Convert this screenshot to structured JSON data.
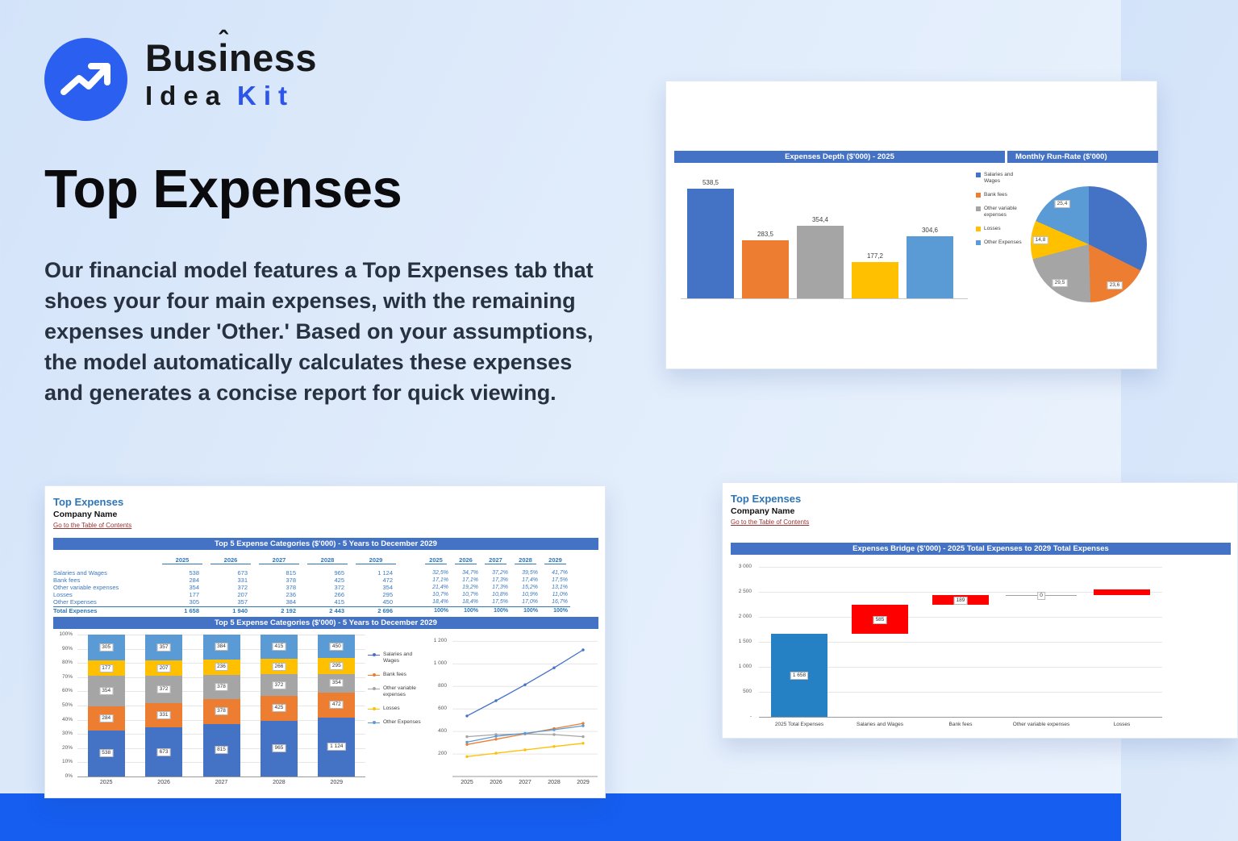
{
  "colors": {
    "accent_blue": "#2a5ff0",
    "footer_strip": "#155ef0",
    "excel_header": "#4472c4",
    "sheet_title_blue": "#2e75b6",
    "toc_link_red": "#963634",
    "bridge_blue": "#2680c4",
    "bridge_red": "#fe0000",
    "series_palette": [
      "#4472c4",
      "#ed7d31",
      "#a5a5a5",
      "#ffc000",
      "#5b9bd5"
    ]
  },
  "logo": {
    "word1_a": "Bus",
    "word1_i": "i",
    "word1_b": "ness",
    "caret": "ˆ",
    "word2": "Idea",
    "word3": "Kit"
  },
  "hero": {
    "title": "Top Expenses",
    "paragraph": "Our financial model features a Top Expenses tab that shoes your four main expenses, with the remaining expenses under 'Other.' Based on your assumptions, the model automatically calculates these expenses and generates a concise report for quick viewing."
  },
  "sheet_common": {
    "sheet_title": "Top Expenses",
    "company": "Company Name",
    "toc_link": "Go to the Table of Contents"
  },
  "table": {
    "header": "Top 5 Expense Categories ($'000) - 5 Years to December 2029",
    "years": [
      "2025",
      "2026",
      "2027",
      "2028",
      "2029"
    ],
    "rows": [
      {
        "label": "Salaries and Wages",
        "values": [
          "538",
          "673",
          "815",
          "965",
          "1 124"
        ],
        "pcts": [
          "32,5%",
          "34,7%",
          "37,2%",
          "39,5%",
          "41,7%"
        ]
      },
      {
        "label": "Bank fees",
        "values": [
          "284",
          "331",
          "378",
          "425",
          "472"
        ],
        "pcts": [
          "17,1%",
          "17,1%",
          "17,3%",
          "17,4%",
          "17,5%"
        ]
      },
      {
        "label": "Other variable expenses",
        "values": [
          "354",
          "372",
          "378",
          "372",
          "354"
        ],
        "pcts": [
          "21,4%",
          "19,2%",
          "17,3%",
          "15,2%",
          "13,1%"
        ]
      },
      {
        "label": "Losses",
        "values": [
          "177",
          "207",
          "236",
          "266",
          "295"
        ],
        "pcts": [
          "10,7%",
          "10,7%",
          "10,8%",
          "10,9%",
          "11,0%"
        ]
      },
      {
        "label": "Other Expenses",
        "values": [
          "305",
          "357",
          "384",
          "415",
          "450"
        ],
        "pcts": [
          "18,4%",
          "18,4%",
          "17,5%",
          "17,0%",
          "16,7%"
        ]
      }
    ],
    "total_row": {
      "label": "Total Expenses",
      "values": [
        "1 658",
        "1 940",
        "2 192",
        "2 443",
        "2 696"
      ],
      "pcts": [
        "100%",
        "100%",
        "100%",
        "100%",
        "100%"
      ]
    }
  },
  "chart_data": [
    {
      "id": "depth_bar",
      "type": "bar",
      "title": "Expenses Depth ($'000) - 2025",
      "categories": [
        "Salaries and Wages",
        "Bank fees",
        "Other variable expenses",
        "Losses",
        "Other Expenses"
      ],
      "values": [
        538.5,
        283.5,
        354.4,
        177.2,
        304.6
      ],
      "value_labels": [
        "538,5",
        "283,5",
        "354,4",
        "177,2",
        "304,6"
      ],
      "colors": [
        "#4472c4",
        "#ed7d31",
        "#a5a5a5",
        "#ffc000",
        "#5b9bd5"
      ],
      "ylim": [
        0,
        600
      ],
      "legend_position": "right"
    },
    {
      "id": "runrate_pie",
      "type": "pie",
      "title": "Monthly Run-Rate ($'000)",
      "slices": [
        {
          "name": "Salaries and Wages",
          "value": 44.8,
          "label": "",
          "color": "#4472c4"
        },
        {
          "name": "Bank fees",
          "value": 23.6,
          "label": "23,6",
          "color": "#ed7d31"
        },
        {
          "name": "Other variable expenses",
          "value": 29.5,
          "label": "29,5",
          "color": "#a5a5a5"
        },
        {
          "name": "Losses",
          "value": 14.8,
          "label": "14,8",
          "color": "#ffc000"
        },
        {
          "name": "Other Expenses",
          "value": 25.4,
          "label": "25,4",
          "color": "#5b9bd5"
        }
      ]
    },
    {
      "id": "stacked100",
      "type": "bar",
      "subtype": "stacked-100",
      "title": "Top 5 Expense Categories ($'000) - 5 Years to December 2029",
      "categories": [
        "2025",
        "2026",
        "2027",
        "2028",
        "2029"
      ],
      "yticks": [
        "100%",
        "90%",
        "80%",
        "70%",
        "60%",
        "50%",
        "40%",
        "30%",
        "20%",
        "10%",
        "0%"
      ],
      "series": [
        {
          "name": "Salaries and Wages",
          "color": "#4472c4",
          "values": [
            538,
            673,
            815,
            965,
            1124
          ],
          "labels": [
            "538",
            "673",
            "815",
            "965",
            "1 124"
          ],
          "pcts": [
            32.5,
            34.7,
            37.2,
            39.5,
            41.7
          ]
        },
        {
          "name": "Bank fees",
          "color": "#ed7d31",
          "values": [
            284,
            331,
            378,
            425,
            472
          ],
          "labels": [
            "284",
            "331",
            "378",
            "425",
            "472"
          ],
          "pcts": [
            17.1,
            17.1,
            17.3,
            17.4,
            17.5
          ]
        },
        {
          "name": "Other variable expenses",
          "color": "#a5a5a5",
          "values": [
            354,
            372,
            378,
            372,
            354
          ],
          "labels": [
            "354",
            "372",
            "378",
            "372",
            "354"
          ],
          "pcts": [
            21.4,
            19.2,
            17.3,
            15.2,
            13.1
          ]
        },
        {
          "name": "Losses",
          "color": "#ffc000",
          "values": [
            177,
            207,
            236,
            266,
            295
          ],
          "labels": [
            "177",
            "207",
            "236",
            "266",
            "295"
          ],
          "pcts": [
            10.7,
            10.7,
            10.8,
            10.9,
            11.0
          ]
        },
        {
          "name": "Other Expenses",
          "color": "#5b9bd5",
          "values": [
            305,
            357,
            384,
            415,
            450
          ],
          "labels": [
            "305",
            "357",
            "384",
            "415",
            "450"
          ],
          "pcts": [
            18.4,
            18.4,
            17.5,
            17.0,
            16.7
          ]
        }
      ]
    },
    {
      "id": "line_chart",
      "type": "line",
      "x": [
        "2025",
        "2026",
        "2027",
        "2028",
        "2029"
      ],
      "ylim": [
        0,
        1260
      ],
      "yticks": [
        1200,
        1000,
        800,
        600,
        400,
        200
      ],
      "ytick_labels": [
        "1 200",
        "1 000",
        "800",
        "600",
        "400",
        "200"
      ],
      "series": [
        {
          "name": "Salaries and Wages",
          "color": "#4472c4",
          "values": [
            538,
            673,
            815,
            965,
            1124
          ]
        },
        {
          "name": "Bank fees",
          "color": "#ed7d31",
          "values": [
            284,
            331,
            378,
            425,
            472
          ]
        },
        {
          "name": "Other variable expenses",
          "color": "#a5a5a5",
          "values": [
            354,
            372,
            378,
            372,
            354
          ]
        },
        {
          "name": "Losses",
          "color": "#ffc000",
          "values": [
            177,
            207,
            236,
            266,
            295
          ]
        },
        {
          "name": "Other Expenses",
          "color": "#5b9bd5",
          "values": [
            305,
            357,
            384,
            415,
            450
          ]
        }
      ]
    },
    {
      "id": "bridge",
      "type": "waterfall",
      "title": "Expenses Bridge ($'000) - 2025 Total Expenses to 2029 Total Expenses",
      "categories": [
        "2025 Total Expenses",
        "Salaries and Wages",
        "Bank fees",
        "Other variable expenses",
        "Losses"
      ],
      "ylim": [
        0,
        3000
      ],
      "ytick_labels": [
        "3 000",
        "2 500",
        "2 000",
        "1 500",
        "1 000",
        "500",
        "-"
      ],
      "ytick_values": [
        3000,
        2500,
        2000,
        1500,
        1000,
        500,
        0
      ],
      "bars": [
        {
          "kind": "bar",
          "from": 0,
          "to": 1658,
          "label": "1 658",
          "color": "#2680c4"
        },
        {
          "kind": "bar",
          "from": 1658,
          "to": 2243,
          "label": "585",
          "color": "#fe0000"
        },
        {
          "kind": "bar",
          "from": 2243,
          "to": 2432,
          "label": "189",
          "color": "#fe0000"
        },
        {
          "kind": "connector",
          "from": 2432,
          "to": 2432,
          "label": "0",
          "color": "#a0a0a0"
        },
        {
          "kind": "bar",
          "from": 2432,
          "to": 2550,
          "label": "",
          "color": "#fe0000"
        }
      ]
    }
  ]
}
